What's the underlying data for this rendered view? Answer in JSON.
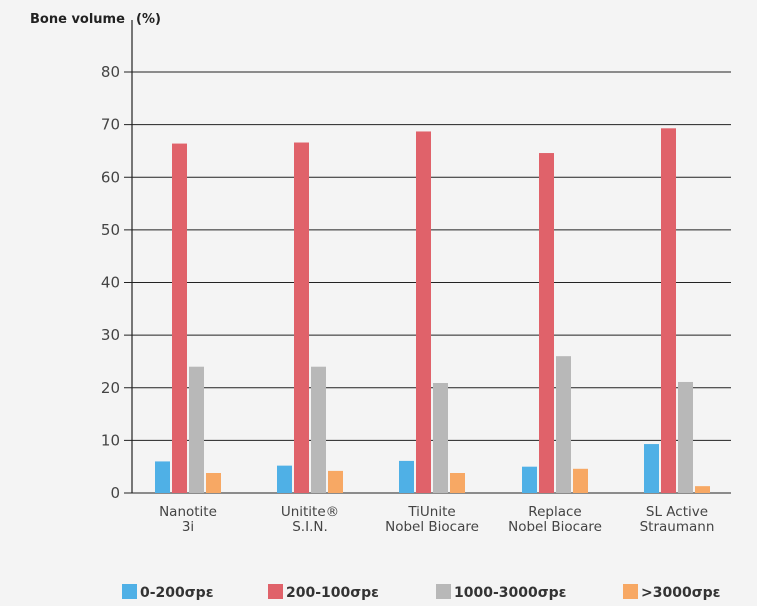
{
  "chart_data": {
    "type": "bar",
    "ylabel": "Bone volume",
    "yunit": "(%)",
    "ylim": [
      0,
      80
    ],
    "yticks": [
      0,
      10,
      20,
      30,
      40,
      50,
      60,
      70,
      80
    ],
    "grid": true,
    "legend_position": "bottom",
    "categories": [
      [
        "Nanotite",
        "3i"
      ],
      [
        "Unitite®",
        "S.I.N."
      ],
      [
        "TiUnite",
        "Nobel Biocare"
      ],
      [
        "Replace",
        "Nobel Biocare"
      ],
      [
        "SL Active",
        "Straumann"
      ]
    ],
    "series": [
      {
        "name": "0-200σpε",
        "color": "#4fb0e6",
        "values": [
          6,
          5.2,
          6.1,
          5,
          9.3
        ]
      },
      {
        "name": "200-100σpε",
        "color": "#e0626a",
        "values": [
          66.4,
          66.6,
          68.7,
          64.6,
          69.3
        ]
      },
      {
        "name": "1000-3000σpε",
        "color": "#b8b8b8",
        "values": [
          24,
          24,
          20.9,
          26,
          21.1
        ]
      },
      {
        "name": ">3000σpε",
        "color": "#f7a864",
        "values": [
          3.8,
          4.2,
          3.8,
          4.6,
          1.3
        ]
      }
    ]
  }
}
